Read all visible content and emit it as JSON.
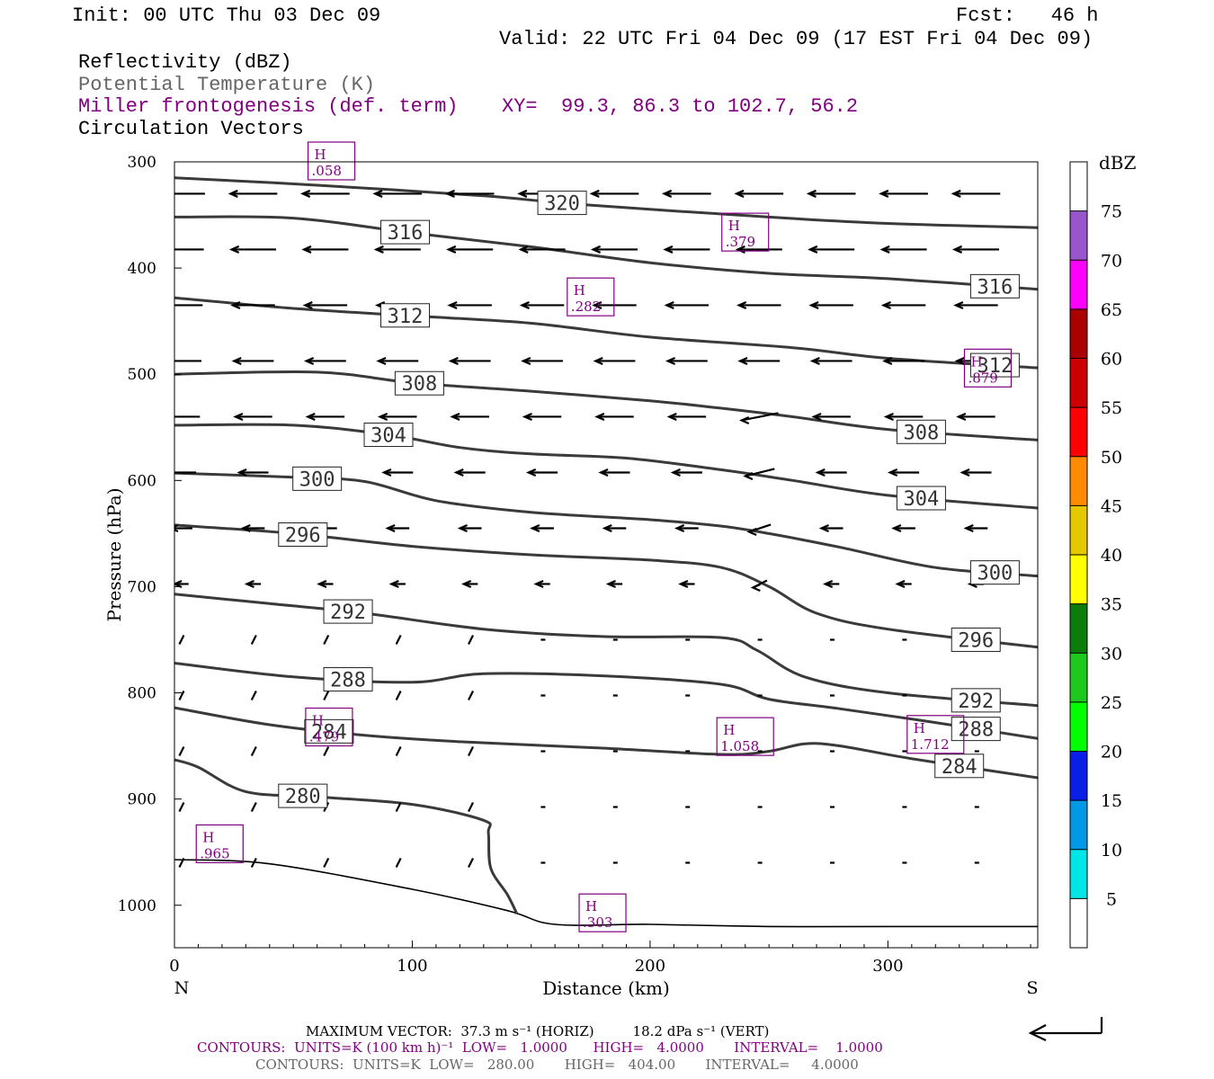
{
  "header": {
    "init": "Init: 00 UTC Thu 03 Dec 09",
    "fcst": "Fcst:   46 h",
    "valid": "Valid: 22 UTC Fri 04 Dec 09 (17 EST Fri 04 Dec 09)",
    "field1": "Reflectivity (dBZ)",
    "field2": "Potential Temperature (K)",
    "field3": "Miller frontogenesis (def. term)",
    "xy": "XY=  99.3, 86.3 to 102.7, 56.2",
    "field4": "Circulation Vectors"
  },
  "footer": {
    "max_vector": "MAXIMUM VECTOR:  37.3 m s⁻¹ (HORIZ)         18.2 dPa s⁻¹ (VERT)",
    "contours_fronto": "CONTOURS:  UNITS=K (100 km h)⁻¹  LOW=   1.0000      HIGH=   4.0000       INTERVAL=    1.0000",
    "contours_theta": "CONTOURS:  UNITS=K  LOW=   280.00       HIGH=   404.00       INTERVAL=     4.0000"
  },
  "colors": {
    "theta": "#3a3a3a",
    "fronto": "#800080",
    "scale": [
      "#ffffff",
      "#00e5e5",
      "#0099e6",
      "#0a1ee6",
      "#00ff00",
      "#1ec81e",
      "#0a7d0a",
      "#ffff00",
      "#e6c800",
      "#ff8c00",
      "#ff0000",
      "#cc0000",
      "#aa0000",
      "#ff00ff",
      "#9955cc",
      "#ffffff"
    ]
  },
  "chart_data": {
    "type": "cross-section",
    "xlabel": "Distance (km)",
    "ylabel": "Pressure (hPa)",
    "xlim": [
      0,
      363
    ],
    "ylim": [
      1040,
      300
    ],
    "x_ticks": [
      0,
      100,
      200,
      300
    ],
    "y_ticks": [
      300,
      400,
      500,
      600,
      700,
      800,
      900,
      1000
    ],
    "left_end_label": "N",
    "right_end_label": "S",
    "colorbar": {
      "unit": "dBZ",
      "levels": [
        5,
        10,
        15,
        20,
        25,
        30,
        35,
        40,
        45,
        50,
        55,
        60,
        65,
        70,
        75
      ]
    },
    "theta_contours": [
      {
        "value": 320,
        "points": [
          [
            0,
            315
          ],
          [
            60,
            322
          ],
          [
            130,
            332
          ],
          [
            170,
            340
          ],
          [
            250,
            352
          ],
          [
            300,
            358
          ],
          [
            363,
            362
          ]
        ]
      },
      {
        "value": 316,
        "points": [
          [
            0,
            352
          ],
          [
            50,
            353
          ],
          [
            100,
            367
          ],
          [
            150,
            380
          ],
          [
            200,
            395
          ],
          [
            250,
            405
          ],
          [
            300,
            410
          ],
          [
            363,
            420
          ]
        ]
      },
      {
        "value": 312,
        "points": [
          [
            0,
            428
          ],
          [
            50,
            438
          ],
          [
            100,
            445
          ],
          [
            150,
            452
          ],
          [
            200,
            465
          ],
          [
            260,
            475
          ],
          [
            300,
            485
          ],
          [
            363,
            494
          ]
        ]
      },
      {
        "value": 308,
        "points": [
          [
            0,
            500
          ],
          [
            60,
            498
          ],
          [
            100,
            508
          ],
          [
            150,
            516
          ],
          [
            200,
            525
          ],
          [
            230,
            532
          ],
          [
            260,
            540
          ],
          [
            300,
            552
          ],
          [
            363,
            562
          ]
        ]
      },
      {
        "value": 304,
        "points": [
          [
            0,
            548
          ],
          [
            50,
            548
          ],
          [
            90,
            557
          ],
          [
            120,
            569
          ],
          [
            150,
            575
          ],
          [
            190,
            579
          ],
          [
            230,
            590
          ],
          [
            260,
            600
          ],
          [
            300,
            614
          ],
          [
            363,
            626
          ]
        ]
      },
      {
        "value": 300,
        "points": [
          [
            0,
            593
          ],
          [
            50,
            597
          ],
          [
            80,
            601
          ],
          [
            110,
            619
          ],
          [
            150,
            630
          ],
          [
            200,
            637
          ],
          [
            230,
            643
          ],
          [
            250,
            650
          ],
          [
            280,
            663
          ],
          [
            320,
            682
          ],
          [
            363,
            690
          ]
        ]
      },
      {
        "value": 296,
        "points": [
          [
            0,
            642
          ],
          [
            50,
            650
          ],
          [
            100,
            662
          ],
          [
            150,
            670
          ],
          [
            200,
            675
          ],
          [
            230,
            682
          ],
          [
            250,
            700
          ],
          [
            270,
            725
          ],
          [
            300,
            740
          ],
          [
            363,
            757
          ]
        ]
      },
      {
        "value": 292,
        "points": [
          [
            0,
            707
          ],
          [
            40,
            716
          ],
          [
            80,
            725
          ],
          [
            130,
            740
          ],
          [
            180,
            747
          ],
          [
            230,
            748
          ],
          [
            245,
            760
          ],
          [
            265,
            785
          ],
          [
            300,
            800
          ],
          [
            363,
            812
          ]
        ]
      },
      {
        "value": 288,
        "points": [
          [
            0,
            772
          ],
          [
            50,
            785
          ],
          [
            100,
            790
          ],
          [
            130,
            782
          ],
          [
            180,
            784
          ],
          [
            230,
            792
          ],
          [
            250,
            806
          ],
          [
            280,
            815
          ],
          [
            320,
            828
          ],
          [
            363,
            843
          ]
        ]
      },
      {
        "value": 284,
        "points": [
          [
            0,
            814
          ],
          [
            40,
            830
          ],
          [
            80,
            840
          ],
          [
            120,
            846
          ],
          [
            180,
            852
          ],
          [
            230,
            858
          ],
          [
            250,
            855
          ],
          [
            265,
            848
          ],
          [
            280,
            850
          ],
          [
            310,
            862
          ],
          [
            363,
            880
          ]
        ]
      },
      {
        "value": 280,
        "points": [
          [
            0,
            863
          ],
          [
            10,
            870
          ],
          [
            30,
            893
          ],
          [
            60,
            898
          ],
          [
            100,
            905
          ],
          [
            130,
            920
          ],
          [
            132,
            932
          ],
          [
            133,
            965
          ],
          [
            140,
            990
          ],
          [
            144,
            1008
          ]
        ]
      }
    ],
    "fronto_maxima": [
      {
        "label": "H",
        "value": ".058",
        "x": 66,
        "p": 300
      },
      {
        "label": "H",
        "value": ".379",
        "x": 240,
        "p": 367
      },
      {
        "label": "H",
        "value": ".282",
        "x": 175,
        "p": 428
      },
      {
        "label": "H",
        "value": ".879",
        "x": 342,
        "p": 495
      },
      {
        "label": "H",
        "value": ".479",
        "x": 65,
        "p": 833
      },
      {
        "label": "H",
        "value": "1.058",
        "x": 240,
        "p": 842
      },
      {
        "label": "H",
        "value": "1.712",
        "x": 320,
        "p": 840
      },
      {
        "label": "H",
        "value": ".965",
        "x": 19,
        "p": 943
      },
      {
        "label": "H",
        "value": ".303",
        "x": 180,
        "p": 1008
      }
    ],
    "terrain": [
      [
        0,
        957
      ],
      [
        40,
        961
      ],
      [
        100,
        985
      ],
      [
        140,
        1005
      ],
      [
        160,
        1018
      ],
      [
        200,
        1018
      ],
      [
        250,
        1020
      ],
      [
        300,
        1020
      ],
      [
        363,
        1020
      ]
    ]
  }
}
